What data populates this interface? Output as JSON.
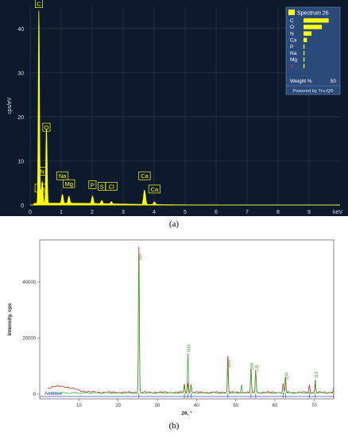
{
  "captions": {
    "a": "(a)",
    "b": "(b)"
  },
  "colors": {
    "eds_bg": "#0d1a2e",
    "eds_grid": "#25364f",
    "eds_axis_text": "#d9e1ec",
    "eds_peak": "#ffff00",
    "legend_bg": "#2a4a7a",
    "xrd_red": "#d42020",
    "xrd_green": "#2fb02f",
    "xrd_ref": "#3a4aa8"
  },
  "chart_data": [
    {
      "type": "area",
      "ylabel": "cps/eV",
      "xunit": "keV",
      "xlim": [
        0,
        10
      ],
      "ylim": [
        0,
        45
      ],
      "x_ticks": [
        0,
        1,
        2,
        3,
        4,
        5,
        6,
        7,
        8,
        9
      ],
      "y_ticks": [
        0,
        10,
        20,
        30,
        40
      ],
      "grid": true,
      "peaks": [
        {
          "energy": 0.28,
          "height": 44,
          "width": 0.018
        },
        {
          "energy": 0.39,
          "height": 5,
          "width": 0.02
        },
        {
          "energy": 0.34,
          "height": 2.5,
          "width": 0.018
        },
        {
          "energy": 0.525,
          "height": 17,
          "width": 0.02
        },
        {
          "energy": 1.04,
          "height": 2,
          "width": 0.025
        },
        {
          "energy": 1.25,
          "height": 1.6,
          "width": 0.025
        },
        {
          "energy": 2.01,
          "height": 1.7,
          "width": 0.025
        },
        {
          "energy": 2.31,
          "height": 0.7,
          "width": 0.025
        },
        {
          "energy": 2.62,
          "height": 0.5,
          "width": 0.025
        },
        {
          "energy": 3.69,
          "height": 3.2,
          "width": 0.03
        },
        {
          "energy": 4.01,
          "height": 0.6,
          "width": 0.03
        }
      ],
      "background_level": 0.4,
      "element_labels": [
        {
          "text": "C",
          "energy": 0.28,
          "y": 44
        },
        {
          "text": "N",
          "energy": 0.39,
          "y": 6
        },
        {
          "text": "Ca",
          "energy": 0.34,
          "y": 2.2
        },
        {
          "text": "O",
          "energy": 0.525,
          "y": 16
        },
        {
          "text": "Na",
          "energy": 1.04,
          "y": 5
        },
        {
          "text": "Mg",
          "energy": 1.25,
          "y": 3.2
        },
        {
          "text": "P",
          "energy": 2.01,
          "y": 3
        },
        {
          "text": "S",
          "energy": 2.31,
          "y": 2.6
        },
        {
          "text": "Cl",
          "energy": 2.62,
          "y": 2.6
        },
        {
          "text": "Ca",
          "energy": 3.69,
          "y": 5
        },
        {
          "text": "Ca",
          "energy": 4.01,
          "y": 2
        }
      ],
      "legend": {
        "title": "Spectrum 26",
        "elements": [
          {
            "label": "C",
            "weight": 44
          },
          {
            "label": "O",
            "weight": 32
          },
          {
            "label": "N",
            "weight": 14
          },
          {
            "label": "Ca",
            "weight": 6
          },
          {
            "label": "P",
            "weight": 1.5
          },
          {
            "label": "Na",
            "weight": 0.8
          },
          {
            "label": "Mg",
            "weight": 0.5
          },
          {
            "label": "S",
            "weight": 0.3
          }
        ],
        "scale_label": "Weight %",
        "scale_max": "50",
        "footer": "Powered by Tru-Q®"
      }
    },
    {
      "type": "line",
      "xlabel": "2θ, °",
      "ylabel": "Intensity, cps",
      "xlim": [
        0,
        75
      ],
      "ylim": [
        -1000,
        55000
      ],
      "x_ticks": [
        10,
        20,
        30,
        40,
        50,
        60,
        70
      ],
      "y_ticks": [
        0,
        20000,
        40000
      ],
      "grid": false,
      "reference_phase": "Anatase",
      "series": [
        {
          "color_key": "xrd_red",
          "peaks": [
            {
              "x": 25.3,
              "y": 52000
            },
            {
              "x": 36.9,
              "y": 3000
            },
            {
              "x": 37.8,
              "y": 3500
            },
            {
              "x": 38.6,
              "y": 2800
            },
            {
              "x": 48.0,
              "y": 13000
            },
            {
              "x": 53.9,
              "y": 8500
            },
            {
              "x": 55.1,
              "y": 8000
            },
            {
              "x": 62.1,
              "y": 3000
            },
            {
              "x": 62.7,
              "y": 5500
            },
            {
              "x": 68.8,
              "y": 2500
            },
            {
              "x": 70.3,
              "y": 2800
            },
            {
              "x": 75.0,
              "y": 2000
            }
          ]
        },
        {
          "color_key": "xrd_green",
          "peaks": [
            {
              "x": 25.3,
              "y": 47000
            },
            {
              "x": 36.9,
              "y": 2500
            },
            {
              "x": 37.8,
              "y": 14500
            },
            {
              "x": 38.6,
              "y": 2500
            },
            {
              "x": 48.0,
              "y": 9000
            },
            {
              "x": 51.5,
              "y": 3000
            },
            {
              "x": 53.9,
              "y": 8000
            },
            {
              "x": 55.1,
              "y": 7500
            },
            {
              "x": 62.7,
              "y": 4500
            },
            {
              "x": 70.3,
              "y": 5000
            },
            {
              "x": 75.0,
              "y": 2000
            }
          ]
        }
      ],
      "reference_ticks": [
        25.3,
        36.9,
        37.8,
        38.6,
        48.0,
        53.9,
        55.1,
        62.1,
        62.7,
        68.8,
        70.3,
        75.0
      ],
      "peak_labels": [
        {
          "text": "101",
          "x": 25.3,
          "y": 47000
        },
        {
          "text": "004",
          "x": 37.8,
          "y": 14500
        },
        {
          "text": "200",
          "x": 48.0,
          "y": 9000
        },
        {
          "text": "105",
          "x": 53.9,
          "y": 8000
        },
        {
          "text": "211",
          "x": 55.1,
          "y": 7500
        },
        {
          "text": "204",
          "x": 62.7,
          "y": 4500
        },
        {
          "text": "116",
          "x": 70.3,
          "y": 5000
        }
      ]
    }
  ]
}
